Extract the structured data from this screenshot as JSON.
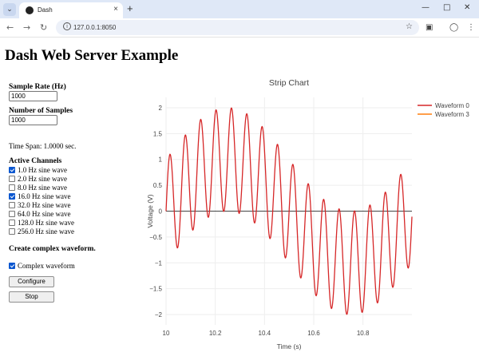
{
  "browser": {
    "tab_title": "Dash",
    "url": "127.0.0.1:8050",
    "new_tab": "+",
    "tab_close": "×",
    "tab_list": "⌄"
  },
  "page": {
    "title": "Dash Web Server Example"
  },
  "controls": {
    "sample_rate_label": "Sample Rate (Hz)",
    "sample_rate_value": "1000",
    "num_samples_label": "Number of Samples",
    "num_samples_value": "1000",
    "time_span": "Time Span: 1.0000 sec.",
    "active_channels_label": "Active Channels",
    "channels": [
      {
        "label": "1.0 Hz sine wave",
        "checked": true
      },
      {
        "label": "2.0 Hz sine wave",
        "checked": false
      },
      {
        "label": "8.0 Hz sine wave",
        "checked": false
      },
      {
        "label": "16.0 Hz sine wave",
        "checked": true
      },
      {
        "label": "32.0 Hz sine wave",
        "checked": false
      },
      {
        "label": "64.0 Hz sine wave",
        "checked": false
      },
      {
        "label": "128.0 Hz sine wave",
        "checked": false
      },
      {
        "label": "256.0 Hz sine wave",
        "checked": false
      }
    ],
    "complex_heading": "Create complex waveform.",
    "complex_label": "Complex waveform",
    "complex_checked": true,
    "configure_label": "Configure",
    "stop_label": "Stop"
  },
  "chart_data": {
    "type": "line",
    "title": "Strip Chart",
    "xlabel": "Time (s)",
    "ylabel": "Voltage (V)",
    "xlim": [
      10,
      10.999
    ],
    "ylim": [
      -2.2,
      2.2
    ],
    "xticks": [
      10,
      10.2,
      10.4,
      10.6,
      10.8
    ],
    "xtick_labels": [
      "10",
      "10.2",
      "10.4",
      "10.6",
      "10.8"
    ],
    "yticks": [
      2,
      1.5,
      1,
      0.5,
      0,
      -0.5,
      -1,
      -1.5,
      -2
    ],
    "ytick_labels": [
      "2",
      "1.5",
      "1",
      "0.5",
      "0",
      "−0.5",
      "−1",
      "−1.5",
      "−2"
    ],
    "grid": true,
    "legend_position": "top-right",
    "series": [
      {
        "name": "Waveform 0",
        "color": "#d62728",
        "components": [
          {
            "freq_hz": 1,
            "amp": 1
          },
          {
            "freq_hz": 16,
            "amp": 1
          }
        ]
      },
      {
        "name": "Waveform 3",
        "color": "#ff7f0e",
        "components": []
      }
    ],
    "x_start": 10,
    "sample_count": 1000,
    "sample_rate_hz": 1000
  }
}
